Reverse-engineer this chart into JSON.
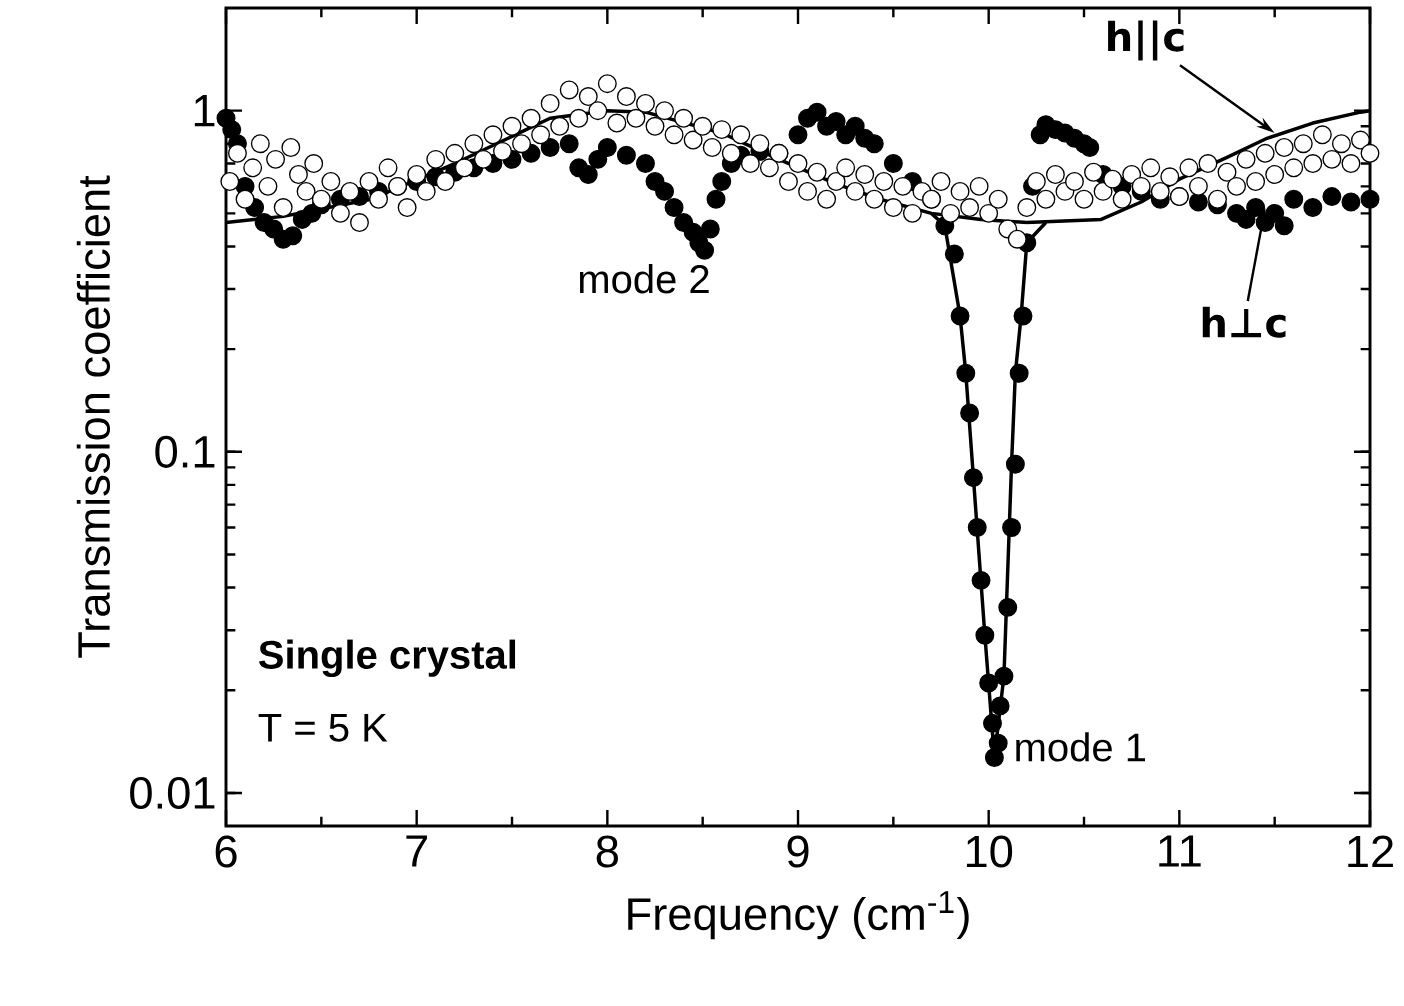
{
  "chart_data": {
    "type": "scatter",
    "xlabel": "Frequency (cm$^{-1}$)",
    "ylabel": "Transmission coefficient",
    "log": "y",
    "xlim": [
      6,
      12
    ],
    "ylim": [
      0.008,
      2
    ],
    "xticks": [
      6,
      7,
      8,
      9,
      10,
      11,
      12
    ],
    "yticks": [
      0.01,
      0.1,
      1
    ],
    "grid": false,
    "series": [
      {
        "marker": "circle",
        "color": "#000000",
        "x": [
          6.0,
          6.03,
          6.06,
          6.1,
          6.15,
          6.2,
          6.25,
          6.3,
          6.35,
          6.4,
          6.45,
          6.5,
          6.6,
          6.7,
          6.8,
          6.9,
          7.0,
          7.1,
          7.2,
          7.3,
          7.4,
          7.5,
          7.6,
          7.7,
          7.8,
          7.85,
          7.9,
          7.95,
          8.0,
          8.1,
          8.2,
          8.25,
          8.3,
          8.35,
          8.4,
          8.45,
          8.48,
          8.51,
          8.54,
          8.57,
          8.6,
          8.65,
          8.7,
          8.8,
          8.9,
          9.0,
          9.05,
          9.1,
          9.15,
          9.2,
          9.25,
          9.3,
          9.35,
          9.4,
          9.5,
          9.6,
          9.7,
          9.77,
          9.82,
          9.85,
          9.88,
          9.9,
          9.92,
          9.94,
          9.96,
          9.98,
          10.0,
          10.02,
          10.03,
          10.05,
          10.06,
          10.08,
          10.1,
          10.12,
          10.14,
          10.16,
          10.18,
          10.2,
          10.23,
          10.27,
          10.3,
          10.35,
          10.4,
          10.45,
          10.5,
          10.53,
          10.6,
          10.7,
          10.8,
          10.9,
          11.0,
          11.1,
          11.2,
          11.3,
          11.35,
          11.4,
          11.45,
          11.5,
          11.55,
          11.6,
          11.7,
          11.8,
          11.9,
          12.0
        ],
        "values": [
          0.95,
          0.88,
          0.8,
          0.6,
          0.52,
          0.47,
          0.45,
          0.42,
          0.43,
          0.48,
          0.5,
          0.53,
          0.55,
          0.56,
          0.58,
          0.6,
          0.62,
          0.64,
          0.66,
          0.68,
          0.7,
          0.72,
          0.75,
          0.78,
          0.8,
          0.68,
          0.65,
          0.72,
          0.78,
          0.74,
          0.7,
          0.62,
          0.58,
          0.52,
          0.47,
          0.44,
          0.41,
          0.39,
          0.45,
          0.55,
          0.62,
          0.7,
          0.74,
          0.76,
          0.75,
          0.85,
          0.95,
          0.99,
          0.9,
          0.93,
          0.85,
          0.9,
          0.83,
          0.8,
          0.7,
          0.62,
          0.55,
          0.46,
          0.38,
          0.25,
          0.17,
          0.13,
          0.084,
          0.06,
          0.042,
          0.029,
          0.021,
          0.016,
          0.0127,
          0.014,
          0.018,
          0.022,
          0.035,
          0.06,
          0.092,
          0.17,
          0.25,
          0.41,
          0.6,
          0.85,
          0.91,
          0.88,
          0.86,
          0.83,
          0.8,
          0.78,
          0.65,
          0.6,
          0.58,
          0.55,
          0.56,
          0.54,
          0.53,
          0.5,
          0.48,
          0.52,
          0.47,
          0.5,
          0.46,
          0.55,
          0.52,
          0.56,
          0.54,
          0.55
        ]
      },
      {
        "marker": "circle",
        "color": "#ffffff",
        "x": [
          6.02,
          6.06,
          6.1,
          6.14,
          6.18,
          6.22,
          6.26,
          6.3,
          6.34,
          6.38,
          6.42,
          6.46,
          6.5,
          6.55,
          6.6,
          6.65,
          6.7,
          6.75,
          6.8,
          6.85,
          6.9,
          6.95,
          7.0,
          7.05,
          7.1,
          7.15,
          7.2,
          7.25,
          7.3,
          7.35,
          7.4,
          7.45,
          7.5,
          7.55,
          7.6,
          7.65,
          7.7,
          7.75,
          7.8,
          7.85,
          7.9,
          7.95,
          8.0,
          8.05,
          8.1,
          8.15,
          8.2,
          8.25,
          8.3,
          8.35,
          8.4,
          8.45,
          8.5,
          8.55,
          8.6,
          8.65,
          8.7,
          8.75,
          8.8,
          8.85,
          8.9,
          8.95,
          9.0,
          9.05,
          9.1,
          9.15,
          9.2,
          9.25,
          9.3,
          9.35,
          9.4,
          9.45,
          9.5,
          9.55,
          9.6,
          9.65,
          9.7,
          9.75,
          9.8,
          9.85,
          9.9,
          9.95,
          10.0,
          10.05,
          10.1,
          10.15,
          10.2,
          10.25,
          10.3,
          10.35,
          10.4,
          10.45,
          10.5,
          10.55,
          10.6,
          10.65,
          10.7,
          10.75,
          10.8,
          10.85,
          10.9,
          10.95,
          11.0,
          11.05,
          11.1,
          11.15,
          11.2,
          11.25,
          11.3,
          11.35,
          11.4,
          11.45,
          11.5,
          11.55,
          11.6,
          11.65,
          11.7,
          11.75,
          11.8,
          11.85,
          11.9,
          11.95,
          12.0
        ],
        "values": [
          0.62,
          0.75,
          0.55,
          0.68,
          0.8,
          0.6,
          0.72,
          0.52,
          0.78,
          0.65,
          0.58,
          0.7,
          0.55,
          0.62,
          0.5,
          0.58,
          0.47,
          0.62,
          0.55,
          0.68,
          0.6,
          0.52,
          0.65,
          0.58,
          0.72,
          0.62,
          0.75,
          0.68,
          0.8,
          0.72,
          0.85,
          0.76,
          0.9,
          0.8,
          0.95,
          0.85,
          1.05,
          0.9,
          1.15,
          0.95,
          1.1,
          1.0,
          1.2,
          0.92,
          1.1,
          0.95,
          1.05,
          0.9,
          1.0,
          0.85,
          0.95,
          0.82,
          0.9,
          0.78,
          0.88,
          0.75,
          0.85,
          0.7,
          0.8,
          0.68,
          0.75,
          0.62,
          0.7,
          0.58,
          0.66,
          0.55,
          0.62,
          0.68,
          0.58,
          0.65,
          0.55,
          0.62,
          0.52,
          0.6,
          0.5,
          0.58,
          0.55,
          0.62,
          0.5,
          0.58,
          0.52,
          0.6,
          0.5,
          0.55,
          0.45,
          0.42,
          0.52,
          0.62,
          0.55,
          0.65,
          0.58,
          0.62,
          0.55,
          0.66,
          0.58,
          0.63,
          0.55,
          0.65,
          0.6,
          0.68,
          0.58,
          0.64,
          0.56,
          0.68,
          0.6,
          0.7,
          0.55,
          0.66,
          0.6,
          0.72,
          0.62,
          0.75,
          0.65,
          0.78,
          0.68,
          0.8,
          0.7,
          0.85,
          0.72,
          0.8,
          0.7,
          0.82,
          0.75
        ]
      },
      {
        "type": "line",
        "marker": "none",
        "color": "#000000",
        "x": [
          6.0,
          6.3,
          6.76,
          7.2,
          7.7,
          8.0,
          8.2,
          8.6,
          8.9,
          9.2,
          9.43,
          9.7,
          9.96,
          10.2,
          10.59,
          10.8,
          11.0,
          11.25,
          11.46,
          11.7,
          11.95,
          12.0
        ],
        "values": [
          0.47,
          0.49,
          0.55,
          0.7,
          0.95,
          1.0,
          0.99,
          0.86,
          0.72,
          0.61,
          0.55,
          0.5,
          0.48,
          0.47,
          0.48,
          0.54,
          0.63,
          0.73,
          0.83,
          0.92,
          0.99,
          1.0
        ]
      },
      {
        "type": "line",
        "marker": "none",
        "color": "#000000",
        "x": [
          9.7,
          9.77,
          9.85,
          9.88,
          9.92,
          9.98,
          10.03,
          10.08,
          10.12,
          10.14,
          10.17,
          10.2,
          10.3
        ],
        "values": [
          0.5,
          0.46,
          0.25,
          0.17,
          0.084,
          0.029,
          0.0127,
          0.022,
          0.092,
          0.17,
          0.25,
          0.41,
          0.47
        ]
      }
    ],
    "annotations": [
      {
        "text": "mode 1",
        "x": 10.03,
        "y": 0.0127
      },
      {
        "text": "mode 2",
        "x": 8.5,
        "y": 0.39
      },
      {
        "text": "h||c",
        "x": 11.5,
        "y": 0.86
      },
      {
        "text": "h⊥c",
        "x": 11.45,
        "y": 0.52
      },
      "Single crystal",
      "T = 5 K"
    ]
  }
}
